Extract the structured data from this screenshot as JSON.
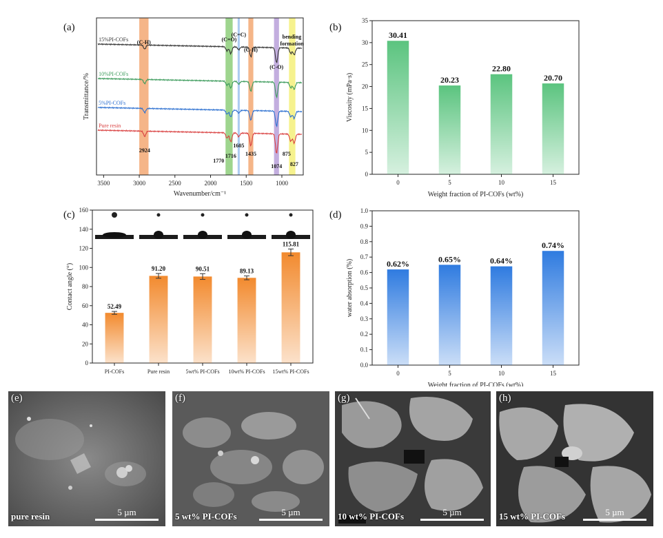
{
  "panel_labels": {
    "a": "(a)",
    "b": "(b)",
    "c": "(c)",
    "d": "(d)",
    "e": "(e)",
    "f": "(f)",
    "g": "(g)",
    "h": "(h)"
  },
  "chart_data": [
    {
      "type": "line",
      "panel": "(a)",
      "xlabel": "Wavenumber/cm⁻¹",
      "ylabel": "Transmittance/%",
      "xlim": [
        3600,
        700
      ],
      "xticks": [
        3500,
        3000,
        2500,
        2000,
        1500,
        1000
      ],
      "series": [
        {
          "name": "15%PI-COFs",
          "color": "#333333"
        },
        {
          "name": "10%PI-COFs",
          "color": "#3a9a5a"
        },
        {
          "name": "5%PI-COFs",
          "color": "#2b6fd0"
        },
        {
          "name": "Pure resin",
          "color": "#d94040"
        }
      ],
      "bands": [
        {
          "from": 3000,
          "to": 2870,
          "color": "#f3a873",
          "label": "(C-H)"
        },
        {
          "from": 1790,
          "to": 1690,
          "color": "#8dce7a",
          "label": "(C=O)"
        },
        {
          "from": 1620,
          "to": 1590,
          "color": "#9ec3f0",
          "label": "(C=C)"
        },
        {
          "from": 1470,
          "to": 1400,
          "color": "#f3a873",
          "label": "(C-H)"
        },
        {
          "from": 1110,
          "to": 1040,
          "color": "#b9a0d9",
          "label": "(C-O)"
        },
        {
          "from": 900,
          "to": 810,
          "color": "#f5f07a",
          "label": "bending formation"
        }
      ],
      "peaks": [
        "2924",
        "1770",
        "1716",
        "1605",
        "1435",
        "1074",
        "875",
        "827"
      ]
    },
    {
      "type": "bar",
      "panel": "(b)",
      "categories": [
        "0",
        "5",
        "10",
        "15"
      ],
      "values": [
        30.41,
        20.23,
        22.8,
        20.7
      ],
      "data_labels": [
        "30.41",
        "20.23",
        "22.80",
        "20.70"
      ],
      "xlabel": "Weight fraction of PI-COFs (wt%)",
      "ylabel": "Viscosity (mPa·s)",
      "ylim": [
        0,
        35
      ],
      "yticks": [
        0,
        5,
        10,
        15,
        20,
        25,
        30,
        35
      ],
      "color": "#5bc47f"
    },
    {
      "type": "bar",
      "panel": "(c)",
      "categories": [
        "PI-COFs",
        "Pure resin",
        "5wt% PI-COFs",
        "10wt% PI-COFs",
        "15wt% PI-COFs"
      ],
      "values": [
        52.49,
        91.2,
        90.51,
        89.13,
        115.81
      ],
      "errors": [
        1.5,
        2.5,
        3.0,
        2.0,
        3.5
      ],
      "data_labels": [
        "52.49",
        "91.20",
        "90.51",
        "89.13",
        "115.81"
      ],
      "ylabel": "Contact angle (°)",
      "ylim": [
        0,
        160
      ],
      "yticks": [
        0,
        20,
        40,
        60,
        80,
        100,
        120,
        140,
        160
      ],
      "color": "#f28a2e"
    },
    {
      "type": "bar",
      "panel": "(d)",
      "categories": [
        "0",
        "5",
        "10",
        "15"
      ],
      "values": [
        0.62,
        0.65,
        0.64,
        0.74
      ],
      "data_labels": [
        "0.62%",
        "0.65%",
        "0.64%",
        "0.74%"
      ],
      "xlabel": "Weight fraction of PI-COFs (wt%)",
      "ylabel": "water absorption (%)",
      "ylim": [
        0,
        1.0
      ],
      "yticks": [
        "0.0",
        "0.1",
        "0.2",
        "0.3",
        "0.4",
        "0.5",
        "0.6",
        "0.7",
        "0.8",
        "0.9",
        "1.0"
      ],
      "color": "#2f7be0"
    }
  ],
  "sem_images": [
    {
      "letter": "(e)",
      "caption": "pure resin",
      "scale": "5 µm"
    },
    {
      "letter": "(f)",
      "caption": "5 wt% PI-COFs",
      "scale": "5 µm"
    },
    {
      "letter": "(g)",
      "caption": "10 wt% PI-COFs",
      "scale": "5 µm"
    },
    {
      "letter": "(h)",
      "caption": "15 wt% PI-COFs",
      "scale": "5 µm"
    }
  ]
}
